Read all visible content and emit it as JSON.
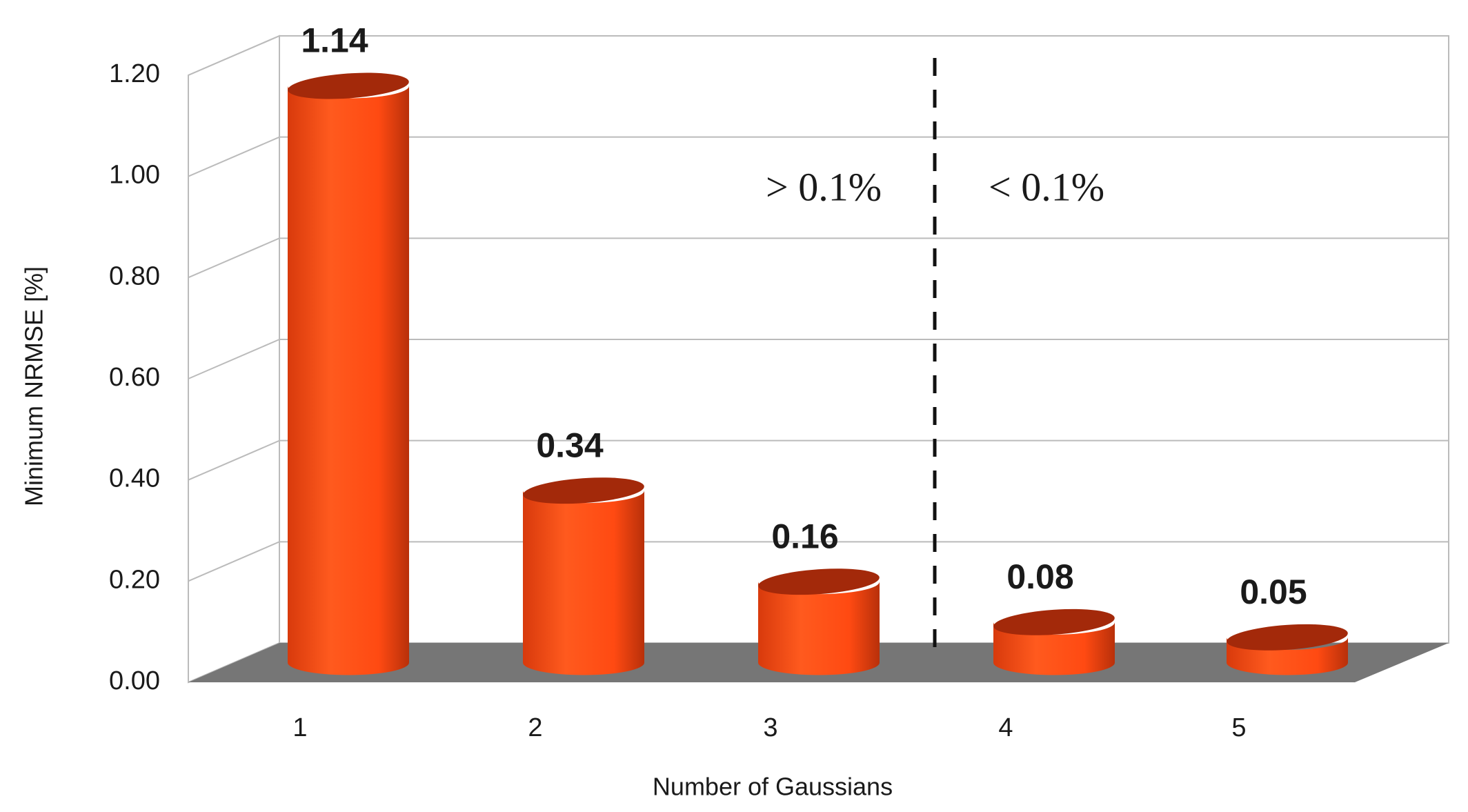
{
  "chart_data": {
    "type": "bar3d",
    "categories": [
      "1",
      "2",
      "3",
      "4",
      "5"
    ],
    "values": [
      1.14,
      0.34,
      0.16,
      0.08,
      0.05
    ],
    "color": "#ff4a12",
    "x_label": "Number of Gaussians",
    "y_label": "Minimum NRMSE [%]",
    "ylim": [
      0,
      1.2
    ],
    "yticks": [
      {
        "value": 0,
        "label": "0.00"
      },
      {
        "value": 0.2,
        "label": "0.20"
      },
      {
        "value": 0.4,
        "label": "0.40"
      },
      {
        "value": 0.6,
        "label": "0.60"
      },
      {
        "value": 0.8,
        "label": "0.80"
      },
      {
        "value": 1.0,
        "label": "1.00"
      },
      {
        "value": 1.2,
        "label": "1.20"
      }
    ],
    "grid": true,
    "annotations": [
      "> 0.1%",
      "< 0.1%"
    ]
  }
}
